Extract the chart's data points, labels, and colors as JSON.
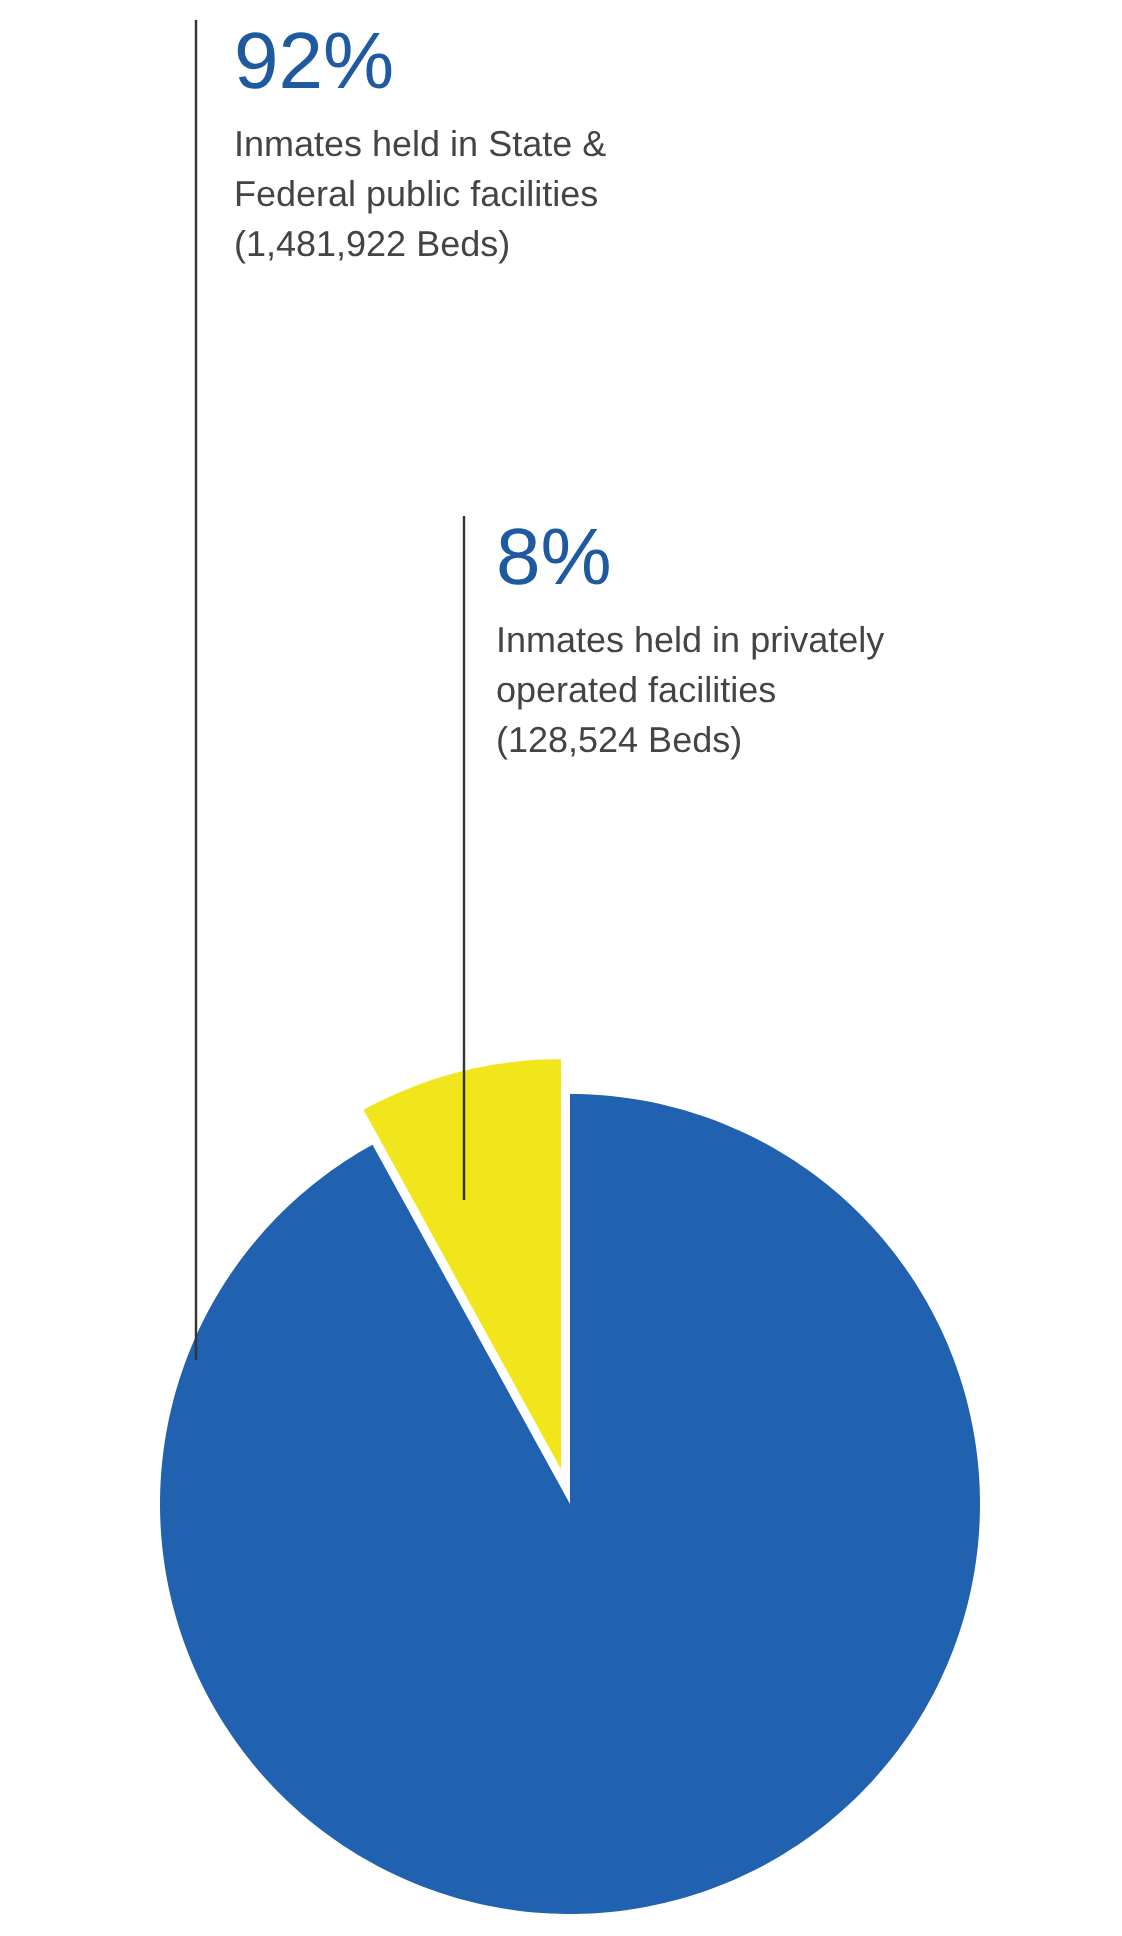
{
  "chart_data": {
    "type": "pie",
    "categories": [
      "Inmates held in State & Federal public facilities",
      "Inmates held in privately operated facilities"
    ],
    "values": [
      92,
      8
    ],
    "colors": [
      "#2062b0",
      "#f1e61c"
    ],
    "value_labels": [
      "92%",
      "8%"
    ],
    "annotations": [
      "(1,481,922 Beds)",
      "(128,524 Beds)"
    ]
  }
}
